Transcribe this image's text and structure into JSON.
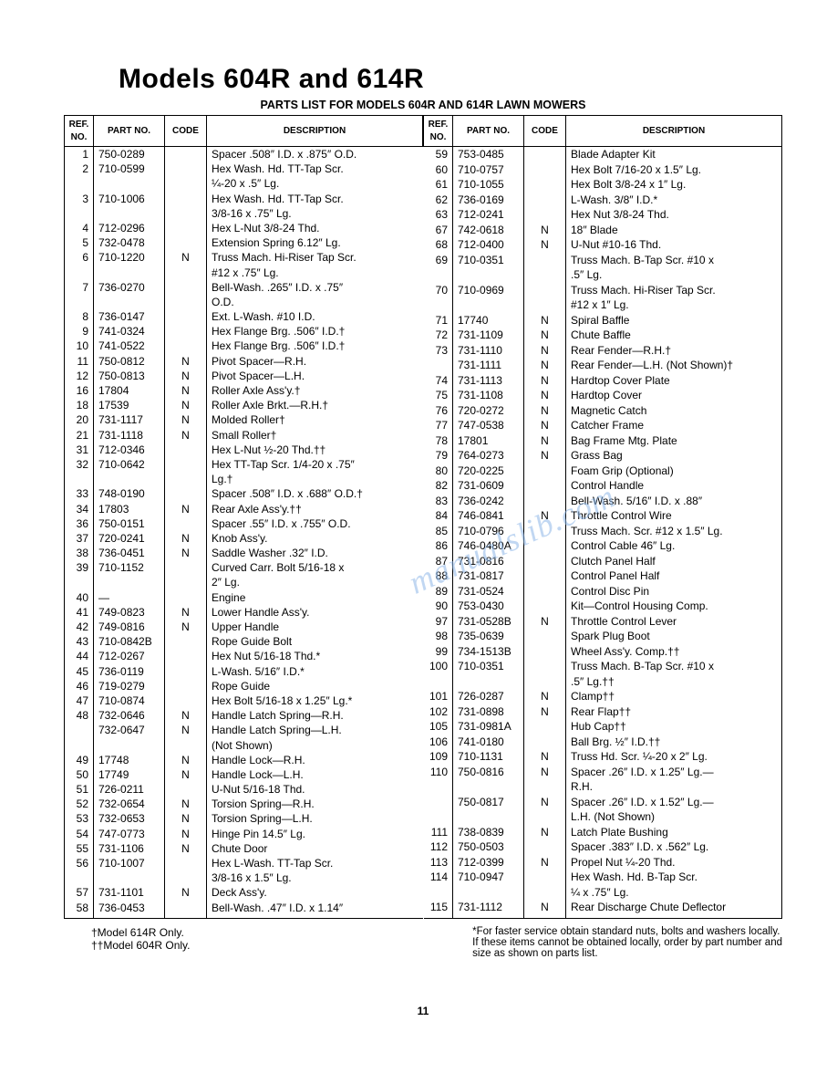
{
  "title": "Models 604R and 614R",
  "subtitle": "PARTS LIST FOR MODELS 604R AND 614R LAWN MOWERS",
  "headers": {
    "ref": "REF.\nNO.",
    "part": "PART\nNO.",
    "code": "CODE",
    "desc": "DESCRIPTION"
  },
  "watermark": "manualslib.com",
  "page_number": "11",
  "footnote_left": [
    "†Model 614R Only.",
    "††Model 604R Only."
  ],
  "footnote_right": [
    "*For faster service obtain standard nuts, bolts and washers locally.",
    "If these items cannot be obtained locally, order by part number and",
    "size as shown on parts list."
  ],
  "left": [
    {
      "ref": "1",
      "part": "750-0289",
      "code": "",
      "desc": "Spacer .508″ I.D. x .875″ O.D."
    },
    {
      "ref": "2",
      "part": "710-0599",
      "code": "",
      "desc": "Hex Wash. Hd. TT-Tap Scr."
    },
    {
      "ref": "",
      "part": "",
      "code": "",
      "desc": "¼-20 x .5″ Lg."
    },
    {
      "ref": "3",
      "part": "710-1006",
      "code": "",
      "desc": "Hex Wash. Hd. TT-Tap Scr."
    },
    {
      "ref": "",
      "part": "",
      "code": "",
      "desc": "3/8-16 x .75″ Lg."
    },
    {
      "ref": "4",
      "part": "712-0296",
      "code": "",
      "desc": "Hex L-Nut 3/8-24 Thd."
    },
    {
      "ref": "5",
      "part": "732-0478",
      "code": "",
      "desc": "Extension Spring 6.12″ Lg."
    },
    {
      "ref": "6",
      "part": "710-1220",
      "code": "N",
      "desc": "Truss Mach. Hi-Riser Tap Scr."
    },
    {
      "ref": "",
      "part": "",
      "code": "",
      "desc": "#12 x .75″ Lg."
    },
    {
      "ref": "7",
      "part": "736-0270",
      "code": "",
      "desc": "Bell-Wash. .265″ I.D. x .75″"
    },
    {
      "ref": "",
      "part": "",
      "code": "",
      "desc": "O.D."
    },
    {
      "ref": "8",
      "part": "736-0147",
      "code": "",
      "desc": "Ext. L-Wash. #10 I.D."
    },
    {
      "ref": "9",
      "part": "741-0324",
      "code": "",
      "desc": "Hex Flange Brg. .506″ I.D.†"
    },
    {
      "ref": "10",
      "part": "741-0522",
      "code": "",
      "desc": "Hex Flange Brg. .506″ I.D.†"
    },
    {
      "ref": "11",
      "part": "750-0812",
      "code": "N",
      "desc": "Pivot Spacer—R.H."
    },
    {
      "ref": "12",
      "part": "750-0813",
      "code": "N",
      "desc": "Pivot Spacer—L.H."
    },
    {
      "ref": "16",
      "part": "17804",
      "code": "N",
      "desc": "Roller Axle Ass'y.†"
    },
    {
      "ref": "18",
      "part": "17539",
      "code": "N",
      "desc": "Roller Axle Brkt.—R.H.†"
    },
    {
      "ref": "20",
      "part": "731-1117",
      "code": "N",
      "desc": "Molded Roller†"
    },
    {
      "ref": "21",
      "part": "731-1118",
      "code": "N",
      "desc": "Small Roller†"
    },
    {
      "ref": "31",
      "part": "712-0346",
      "code": "",
      "desc": "Hex L-Nut ½-20 Thd.††"
    },
    {
      "ref": "32",
      "part": "710-0642",
      "code": "",
      "desc": "Hex TT-Tap Scr. 1/4-20 x .75″"
    },
    {
      "ref": "",
      "part": "",
      "code": "",
      "desc": "Lg.†"
    },
    {
      "ref": "33",
      "part": "748-0190",
      "code": "",
      "desc": "Spacer .508″ I.D. x .688″ O.D.†"
    },
    {
      "ref": "34",
      "part": "17803",
      "code": "N",
      "desc": "Rear Axle Ass'y.††"
    },
    {
      "ref": "36",
      "part": "750-0151",
      "code": "",
      "desc": "Spacer .55″ I.D. x .755″ O.D."
    },
    {
      "ref": "37",
      "part": "720-0241",
      "code": "N",
      "desc": "Knob Ass'y."
    },
    {
      "ref": "38",
      "part": "736-0451",
      "code": "N",
      "desc": "Saddle Washer .32″ I.D."
    },
    {
      "ref": "39",
      "part": "710-1152",
      "code": "",
      "desc": "Curved Carr. Bolt 5/16-18 x"
    },
    {
      "ref": "",
      "part": "",
      "code": "",
      "desc": "2″ Lg."
    },
    {
      "ref": "40",
      "part": "—",
      "code": "",
      "desc": "Engine"
    },
    {
      "ref": "41",
      "part": "749-0823",
      "code": "N",
      "desc": "Lower Handle Ass'y."
    },
    {
      "ref": "42",
      "part": "749-0816",
      "code": "N",
      "desc": "Upper Handle"
    },
    {
      "ref": "43",
      "part": "710-0842B",
      "code": "",
      "desc": "Rope Guide Bolt"
    },
    {
      "ref": "44",
      "part": "712-0267",
      "code": "",
      "desc": "Hex Nut 5/16-18 Thd.*"
    },
    {
      "ref": "45",
      "part": "736-0119",
      "code": "",
      "desc": "L-Wash. 5/16″ I.D.*"
    },
    {
      "ref": "46",
      "part": "719-0279",
      "code": "",
      "desc": "Rope Guide"
    },
    {
      "ref": "47",
      "part": "710-0874",
      "code": "",
      "desc": "Hex Bolt 5/16-18 x 1.25″ Lg.*"
    },
    {
      "ref": "48",
      "part": "732-0646",
      "code": "N",
      "desc": "Handle Latch Spring—R.H."
    },
    {
      "ref": "",
      "part": "732-0647",
      "code": "N",
      "desc": "Handle Latch Spring—L.H."
    },
    {
      "ref": "",
      "part": "",
      "code": "",
      "desc": "(Not Shown)"
    },
    {
      "ref": "49",
      "part": "17748",
      "code": "N",
      "desc": "Handle Lock—R.H."
    },
    {
      "ref": "50",
      "part": "17749",
      "code": "N",
      "desc": "Handle Lock—L.H."
    },
    {
      "ref": "51",
      "part": "726-0211",
      "code": "",
      "desc": "U-Nut 5/16-18 Thd."
    },
    {
      "ref": "52",
      "part": "732-0654",
      "code": "N",
      "desc": "Torsion Spring—R.H."
    },
    {
      "ref": "53",
      "part": "732-0653",
      "code": "N",
      "desc": "Torsion Spring—L.H."
    },
    {
      "ref": "54",
      "part": "747-0773",
      "code": "N",
      "desc": "Hinge Pin 14.5″ Lg."
    },
    {
      "ref": "55",
      "part": "731-1106",
      "code": "N",
      "desc": "Chute Door"
    },
    {
      "ref": "56",
      "part": "710-1007",
      "code": "",
      "desc": "Hex L-Wash. TT-Tap Scr."
    },
    {
      "ref": "",
      "part": "",
      "code": "",
      "desc": "3/8-16 x 1.5″ Lg."
    },
    {
      "ref": "57",
      "part": "731-1101",
      "code": "N",
      "desc": "Deck Ass'y."
    },
    {
      "ref": "58",
      "part": "736-0453",
      "code": "",
      "desc": "Bell-Wash. .47″ I.D. x 1.14″"
    }
  ],
  "right": [
    {
      "ref": "59",
      "part": "753-0485",
      "code": "",
      "desc": "Blade Adapter Kit"
    },
    {
      "ref": "60",
      "part": "710-0757",
      "code": "",
      "desc": "Hex Bolt 7/16-20 x 1.5″ Lg."
    },
    {
      "ref": "61",
      "part": "710-1055",
      "code": "",
      "desc": "Hex Bolt 3/8-24 x 1″ Lg."
    },
    {
      "ref": "62",
      "part": "736-0169",
      "code": "",
      "desc": "L-Wash. 3/8″ I.D.*"
    },
    {
      "ref": "63",
      "part": "712-0241",
      "code": "",
      "desc": "Hex Nut 3/8-24 Thd."
    },
    {
      "ref": "67",
      "part": "742-0618",
      "code": "N",
      "desc": "18″ Blade"
    },
    {
      "ref": "68",
      "part": "712-0400",
      "code": "N",
      "desc": "U-Nut #10-16 Thd."
    },
    {
      "ref": "69",
      "part": "710-0351",
      "code": "",
      "desc": "Truss Mach. B-Tap Scr. #10 x"
    },
    {
      "ref": "",
      "part": "",
      "code": "",
      "desc": ".5″ Lg."
    },
    {
      "ref": "70",
      "part": "710-0969",
      "code": "",
      "desc": "Truss Mach. Hi-Riser Tap Scr."
    },
    {
      "ref": "",
      "part": "",
      "code": "",
      "desc": "#12 x 1″ Lg."
    },
    {
      "ref": "71",
      "part": "17740",
      "code": "N",
      "desc": "Spiral Baffle"
    },
    {
      "ref": "72",
      "part": "731-1109",
      "code": "N",
      "desc": "Chute Baffle"
    },
    {
      "ref": "73",
      "part": "731-1110",
      "code": "N",
      "desc": "Rear Fender—R.H.†"
    },
    {
      "ref": "",
      "part": "731-1111",
      "code": "N",
      "desc": "Rear Fender—L.H. (Not Shown)†"
    },
    {
      "ref": "74",
      "part": "731-1113",
      "code": "N",
      "desc": "Hardtop Cover Plate"
    },
    {
      "ref": "75",
      "part": "731-1108",
      "code": "N",
      "desc": "Hardtop Cover"
    },
    {
      "ref": "76",
      "part": "720-0272",
      "code": "N",
      "desc": "Magnetic Catch"
    },
    {
      "ref": "77",
      "part": "747-0538",
      "code": "N",
      "desc": "Catcher Frame"
    },
    {
      "ref": "78",
      "part": "17801",
      "code": "N",
      "desc": "Bag Frame Mtg. Plate"
    },
    {
      "ref": "79",
      "part": "764-0273",
      "code": "N",
      "desc": "Grass Bag"
    },
    {
      "ref": "80",
      "part": "720-0225",
      "code": "",
      "desc": "Foam Grip (Optional)"
    },
    {
      "ref": "82",
      "part": "731-0609",
      "code": "",
      "desc": "Control Handle"
    },
    {
      "ref": "83",
      "part": "736-0242",
      "code": "",
      "desc": "Bell-Wash. 5/16″ I.D. x .88″"
    },
    {
      "ref": "84",
      "part": "746-0841",
      "code": "N",
      "desc": "Throttle Control Wire"
    },
    {
      "ref": "85",
      "part": "710-0796",
      "code": "",
      "desc": "Truss Mach. Scr. #12 x 1.5″ Lg."
    },
    {
      "ref": "86",
      "part": "746-0480A",
      "code": "",
      "desc": "Control Cable 46″ Lg."
    },
    {
      "ref": "87",
      "part": "731-0816",
      "code": "",
      "desc": "Clutch Panel Half"
    },
    {
      "ref": "88",
      "part": "731-0817",
      "code": "",
      "desc": "Control Panel Half"
    },
    {
      "ref": "89",
      "part": "731-0524",
      "code": "",
      "desc": "Control Disc Pin"
    },
    {
      "ref": "90",
      "part": "753-0430",
      "code": "",
      "desc": "Kit—Control Housing Comp."
    },
    {
      "ref": "97",
      "part": "731-0528B",
      "code": "N",
      "desc": "Throttle Control Lever"
    },
    {
      "ref": "98",
      "part": "735-0639",
      "code": "",
      "desc": "Spark Plug Boot"
    },
    {
      "ref": "99",
      "part": "734-1513B",
      "code": "",
      "desc": "Wheel Ass'y. Comp.††"
    },
    {
      "ref": "100",
      "part": "710-0351",
      "code": "",
      "desc": "Truss Mach. B-Tap Scr. #10 x"
    },
    {
      "ref": "",
      "part": "",
      "code": "",
      "desc": ".5″ Lg.††"
    },
    {
      "ref": "101",
      "part": "726-0287",
      "code": "N",
      "desc": "Clamp††"
    },
    {
      "ref": "102",
      "part": "731-0898",
      "code": "N",
      "desc": "Rear Flap††"
    },
    {
      "ref": "105",
      "part": "731-0981A",
      "code": "",
      "desc": "Hub Cap††"
    },
    {
      "ref": "106",
      "part": "741-0180",
      "code": "",
      "desc": "Ball Brg. ½″ I.D.††"
    },
    {
      "ref": "109",
      "part": "710-1131",
      "code": "N",
      "desc": "Truss Hd. Scr. ¼-20 x 2″ Lg."
    },
    {
      "ref": "110",
      "part": "750-0816",
      "code": "N",
      "desc": "Spacer .26″ I.D. x 1.25″ Lg.—"
    },
    {
      "ref": "",
      "part": "",
      "code": "",
      "desc": "R.H."
    },
    {
      "ref": "",
      "part": "750-0817",
      "code": "N",
      "desc": "Spacer .26″ I.D. x 1.52″ Lg.—"
    },
    {
      "ref": "",
      "part": "",
      "code": "",
      "desc": "L.H. (Not Shown)"
    },
    {
      "ref": "111",
      "part": "738-0839",
      "code": "N",
      "desc": "Latch Plate Bushing"
    },
    {
      "ref": "112",
      "part": "750-0503",
      "code": "",
      "desc": "Spacer .383″ I.D. x .562″ Lg."
    },
    {
      "ref": "113",
      "part": "712-0399",
      "code": "N",
      "desc": "Propel Nut ¼-20 Thd."
    },
    {
      "ref": "114",
      "part": "710-0947",
      "code": "",
      "desc": "Hex Wash. Hd. B-Tap Scr."
    },
    {
      "ref": "",
      "part": "",
      "code": "",
      "desc": "¼ x .75″ Lg."
    },
    {
      "ref": "115",
      "part": "731-1112",
      "code": "N",
      "desc": "Rear Discharge Chute Deflector"
    }
  ]
}
